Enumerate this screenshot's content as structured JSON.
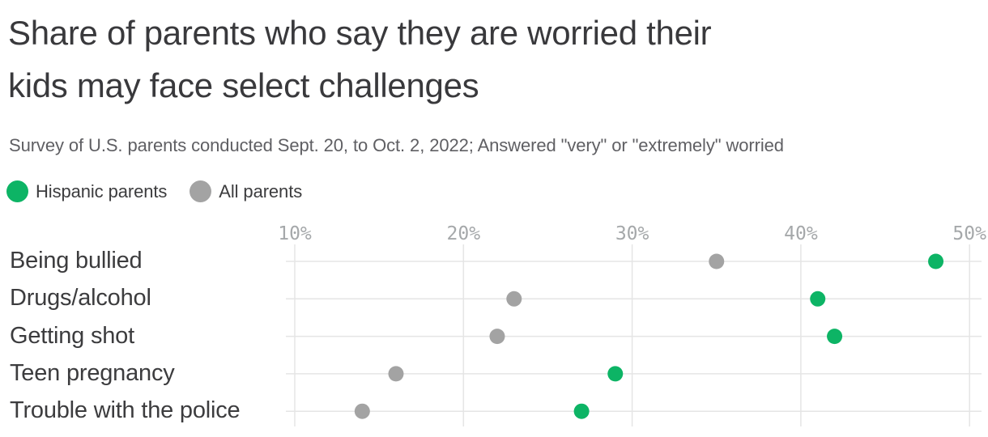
{
  "header": {
    "title_lines": [
      "Share of parents who say they are worried their",
      "kids may face select challenges"
    ],
    "subtitle": "Survey of U.S. parents conducted Sept. 20, to Oct. 2, 2022; Answered \"very\" or \"extremely\" worried"
  },
  "colors": {
    "title": "#39393c",
    "label": "#3c3c3e",
    "subtitle": "#5f5f63",
    "grid": "#e5e5e5",
    "tick_text": "#a5a8aa",
    "hispanic": "#0db465",
    "all": "#a3a3a3"
  },
  "chart_data": {
    "type": "scatter",
    "variant": "horizontal-dot-plot",
    "title": "Share of parents who say they are worried their kids may face select challenges",
    "subtitle": "Survey of U.S. parents conducted Sept. 20, to Oct. 2, 2022; Answered \"very\" or \"extremely\" worried",
    "categories": [
      "Being bullied",
      "Drugs/alcohol",
      "Getting shot",
      "Teen pregnancy",
      "Trouble with the police"
    ],
    "series": [
      {
        "name": "Hispanic parents",
        "color_key": "hispanic",
        "values": [
          48,
          41,
          42,
          29,
          27
        ]
      },
      {
        "name": "All parents",
        "color_key": "all",
        "values": [
          35,
          23,
          22,
          16,
          14
        ]
      }
    ],
    "x_ticks": [
      {
        "value": 10,
        "label": "10%"
      },
      {
        "value": 20,
        "label": "20%"
      },
      {
        "value": 30,
        "label": "30%"
      },
      {
        "value": 40,
        "label": "40%"
      },
      {
        "value": 50,
        "label": "50%"
      }
    ],
    "xlim": [
      9.5,
      51
    ],
    "xlabel": "",
    "ylabel": "",
    "grid": true,
    "legend_position": "top-left",
    "unit": "%"
  }
}
